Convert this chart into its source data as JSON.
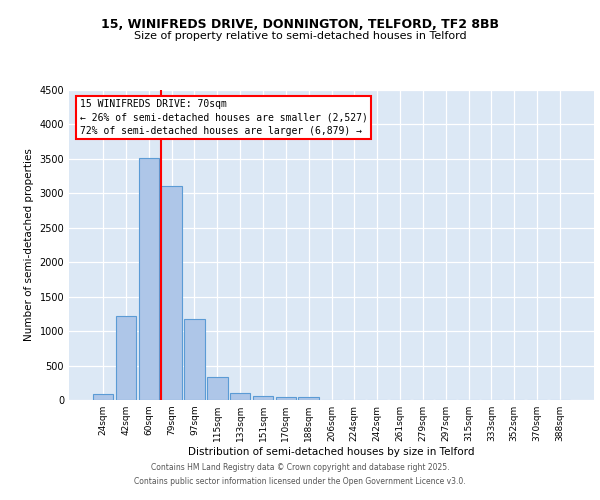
{
  "title1": "15, WINIFREDS DRIVE, DONNINGTON, TELFORD, TF2 8BB",
  "title2": "Size of property relative to semi-detached houses in Telford",
  "xlabel": "Distribution of semi-detached houses by size in Telford",
  "ylabel": "Number of semi-detached properties",
  "bar_labels": [
    "24sqm",
    "42sqm",
    "60sqm",
    "79sqm",
    "97sqm",
    "115sqm",
    "133sqm",
    "151sqm",
    "170sqm",
    "188sqm",
    "206sqm",
    "224sqm",
    "242sqm",
    "261sqm",
    "279sqm",
    "297sqm",
    "315sqm",
    "333sqm",
    "352sqm",
    "370sqm",
    "388sqm"
  ],
  "bar_values": [
    80,
    1220,
    3520,
    3100,
    1170,
    340,
    100,
    60,
    40,
    40,
    0,
    0,
    0,
    0,
    0,
    0,
    0,
    0,
    0,
    0,
    0
  ],
  "bar_color": "#aec6e8",
  "bar_edge_color": "#5b9bd5",
  "ylim": [
    0,
    4500
  ],
  "yticks": [
    0,
    500,
    1000,
    1500,
    2000,
    2500,
    3000,
    3500,
    4000,
    4500
  ],
  "property_line_color": "red",
  "annotation_title": "15 WINIFREDS DRIVE: 70sqm",
  "annotation_line1": "← 26% of semi-detached houses are smaller (2,527)",
  "annotation_line2": "72% of semi-detached houses are larger (6,879) →",
  "footer1": "Contains HM Land Registry data © Crown copyright and database right 2025.",
  "footer2": "Contains public sector information licensed under the Open Government Licence v3.0.",
  "background_color": "#dce8f5",
  "grid_color": "white",
  "fig_bg": "white",
  "title1_fontsize": 9,
  "title2_fontsize": 8,
  "ylabel_fontsize": 7.5,
  "xlabel_fontsize": 7.5,
  "ytick_fontsize": 7,
  "xtick_fontsize": 6.5,
  "ann_fontsize": 7,
  "footer_fontsize": 5.5
}
